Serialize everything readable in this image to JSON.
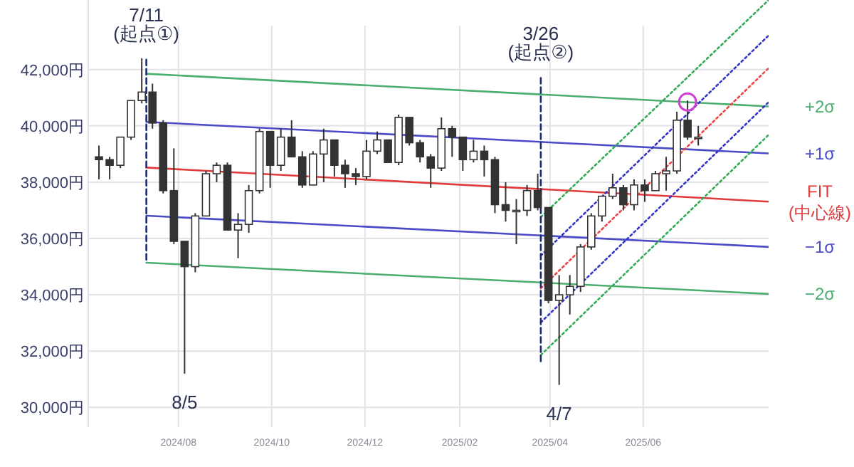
{
  "chart_data": {
    "type": "candlestick",
    "grid": true,
    "xlim": [
      "2024-06-03",
      "2025-08-22"
    ],
    "ylim": [
      29300,
      44470
    ],
    "xticks": [
      {
        "value": "2024-08-01",
        "label": "2024/08"
      },
      {
        "value": "2024-10-01",
        "label": "2024/10"
      },
      {
        "value": "2024-12-01",
        "label": "2024/12"
      },
      {
        "value": "2025-02-01",
        "label": "2025/02"
      },
      {
        "value": "2025-04-01",
        "label": "2025/04"
      },
      {
        "value": "2025-06-01",
        "label": "2025/06"
      }
    ],
    "yticks": [
      {
        "value": 30000,
        "label": "30,000円"
      },
      {
        "value": 32000,
        "label": "32,000円"
      },
      {
        "value": 34000,
        "label": "34,000円"
      },
      {
        "value": 36000,
        "label": "36,000円"
      },
      {
        "value": 38000,
        "label": "38,000円"
      },
      {
        "value": 40000,
        "label": "40,000円"
      },
      {
        "value": 42000,
        "label": "42,000円"
      }
    ],
    "series": [
      {
        "type": "line",
        "name": "+2σ",
        "color": "#4aae6e",
        "x": [
          "2024-07-11",
          "2025-08-22"
        ],
        "values": [
          41850,
          40690
        ]
      },
      {
        "type": "line",
        "name": "+1σ",
        "color": "#4b4bc8",
        "x": [
          "2024-07-11",
          "2025-08-22"
        ],
        "values": [
          40140,
          39020
        ]
      },
      {
        "type": "line",
        "name": "FIT\n(中心線)",
        "color": "#e03a3a",
        "x": [
          "2024-07-11",
          "2025-08-22"
        ],
        "values": [
          38520,
          37310
        ]
      },
      {
        "type": "line",
        "name": "−1σ",
        "color": "#4b4bc8",
        "x": [
          "2024-07-11",
          "2025-08-22"
        ],
        "values": [
          36810,
          35700
        ]
      },
      {
        "type": "line",
        "name": "−2σ",
        "color": "#4aae6e",
        "x": [
          "2024-07-11",
          "2025-08-22"
        ],
        "values": [
          35140,
          34030
        ]
      },
      {
        "type": "line",
        "color": "#33aa55",
        "line_style": "dotted",
        "x": [
          "2025-03-26",
          "2025-08-22"
        ],
        "values": [
          36760,
          44470
        ]
      },
      {
        "type": "line",
        "color": "#3434c8",
        "line_style": "dotted",
        "x": [
          "2025-03-26",
          "2025-08-22"
        ],
        "values": [
          35390,
          43210
        ]
      },
      {
        "type": "line",
        "color": "#ee4444",
        "line_style": "dotted",
        "x": [
          "2025-03-26",
          "2025-08-22"
        ],
        "values": [
          34230,
          42050
        ]
      },
      {
        "type": "line",
        "color": "#3434c8",
        "line_style": "dotted",
        "x": [
          "2025-03-26",
          "2025-08-22"
        ],
        "values": [
          33020,
          40840
        ]
      },
      {
        "type": "line",
        "color": "#33aa55",
        "line_style": "dotted",
        "x": [
          "2025-03-26",
          "2025-08-22"
        ],
        "values": [
          31860,
          39680
        ]
      },
      {
        "type": "line",
        "color": "#1a2a6c",
        "line_style": "dashed",
        "x": [
          "2024-07-11",
          "2024-07-11"
        ],
        "values": [
          42350,
          35240
        ]
      },
      {
        "type": "line",
        "color": "#1a2a6c",
        "line_style": "dashed",
        "x": [
          "2025-03-26",
          "2025-03-26"
        ],
        "values": [
          41700,
          31600
        ]
      },
      {
        "color": "#333333",
        "x": [
          "2024-06-10",
          "2024-06-17",
          "2024-06-24",
          "2024-07-01",
          "2024-07-08",
          "2024-07-15",
          "2024-07-22",
          "2024-07-29",
          "2024-08-05",
          "2024-08-12",
          "2024-08-19",
          "2024-08-26",
          "2024-09-02",
          "2024-09-09",
          "2024-09-16",
          "2024-09-23",
          "2024-09-30",
          "2024-10-07",
          "2024-10-14",
          "2024-10-21",
          "2024-10-28",
          "2024-11-04",
          "2024-11-11",
          "2024-11-18",
          "2024-11-25",
          "2024-12-02",
          "2024-12-09",
          "2024-12-16",
          "2024-12-23",
          "2024-12-30",
          "2025-01-06",
          "2025-01-13",
          "2025-01-20",
          "2025-01-27",
          "2025-02-03",
          "2025-02-10",
          "2025-02-17",
          "2025-02-24",
          "2025-03-03",
          "2025-03-10",
          "2025-03-17",
          "2025-03-24",
          "2025-03-31",
          "2025-04-07",
          "2025-04-14",
          "2025-04-21",
          "2025-04-28",
          "2025-05-05",
          "2025-05-12",
          "2025-05-19",
          "2025-05-26",
          "2025-06-02",
          "2025-06-09",
          "2025-06-16",
          "2025-06-23",
          "2025-06-30",
          "2025-07-07"
        ],
        "ohlc": [
          [
            38900,
            39300,
            38100,
            38800
          ],
          [
            38800,
            38900,
            38100,
            38600
          ],
          [
            38600,
            39600,
            38500,
            39600
          ],
          [
            39600,
            40900,
            39500,
            40900
          ],
          [
            40900,
            42400,
            40800,
            41200
          ],
          [
            41200,
            41500,
            39900,
            40100
          ],
          [
            40100,
            40200,
            37600,
            37700
          ],
          [
            37700,
            39200,
            35800,
            35900
          ],
          [
            35900,
            35900,
            31200,
            35000
          ],
          [
            35000,
            36900,
            34800,
            36800
          ],
          [
            36800,
            38400,
            36800,
            38300
          ],
          [
            38300,
            38700,
            38000,
            38600
          ],
          [
            38600,
            38700,
            36300,
            36300
          ],
          [
            36300,
            36900,
            35300,
            36500
          ],
          [
            36500,
            37900,
            36200,
            37700
          ],
          [
            37700,
            39900,
            37600,
            39800
          ],
          [
            39800,
            39800,
            37800,
            38600
          ],
          [
            38600,
            39900,
            38400,
            39600
          ],
          [
            39600,
            40200,
            38900,
            38900
          ],
          [
            38900,
            39100,
            37800,
            37900
          ],
          [
            37900,
            39100,
            37900,
            39000
          ],
          [
            39000,
            39900,
            38000,
            39500
          ],
          [
            39500,
            39500,
            38200,
            38600
          ],
          [
            38600,
            38800,
            37800,
            38300
          ],
          [
            38300,
            38500,
            37900,
            38200
          ],
          [
            38200,
            39500,
            38100,
            39100
          ],
          [
            39100,
            39800,
            39000,
            39500
          ],
          [
            39500,
            39500,
            38700,
            38700
          ],
          [
            38700,
            40400,
            38600,
            40300
          ],
          [
            40300,
            40300,
            39300,
            39400
          ],
          [
            39400,
            39500,
            38700,
            38900
          ],
          [
            38900,
            39000,
            37800,
            38500
          ],
          [
            38500,
            40300,
            38400,
            39900
          ],
          [
            39900,
            40000,
            38900,
            39600
          ],
          [
            39600,
            39600,
            38400,
            38800
          ],
          [
            38800,
            39500,
            38700,
            39100
          ],
          [
            39100,
            39300,
            38200,
            38800
          ],
          [
            38800,
            38900,
            36900,
            37200
          ],
          [
            37200,
            38000,
            36600,
            37000
          ],
          [
            37000,
            37400,
            35800,
            37000
          ],
          [
            37000,
            37900,
            36800,
            37700
          ],
          [
            37700,
            38300,
            37000,
            37100
          ],
          [
            37100,
            37100,
            33700,
            33800
          ],
          [
            33800,
            34700,
            30800,
            34000
          ],
          [
            34000,
            34700,
            33300,
            34300
          ],
          [
            34300,
            35800,
            34100,
            35700
          ],
          [
            35700,
            36900,
            35600,
            36800
          ],
          [
            36800,
            37500,
            36600,
            37500
          ],
          [
            37500,
            38300,
            37400,
            37800
          ],
          [
            37800,
            37900,
            37000,
            37200
          ],
          [
            37200,
            38100,
            37000,
            37900
          ],
          [
            37900,
            38100,
            37300,
            37700
          ],
          [
            37700,
            38400,
            37700,
            38300
          ],
          [
            38300,
            38900,
            37700,
            38400
          ],
          [
            38400,
            40500,
            38300,
            40200
          ],
          [
            40200,
            40900,
            39500,
            39600
          ],
          [
            39600,
            40000,
            39300,
            39600
          ]
        ]
      },
      {
        "type": "scatter",
        "marker": "circle",
        "color": "#d040d0",
        "x": [
          "2025-06-30"
        ],
        "values": [
          40850
        ]
      }
    ],
    "annotations": [
      {
        "text": "7/11\n(起点①)",
        "x": "2024-07-11",
        "y": 42350
      },
      {
        "text": "8/5",
        "x": "2024-08-05",
        "y": 31200
      },
      {
        "text": "3/26\n(起点②)",
        "x": "2025-03-26",
        "y": 41700
      },
      {
        "text": "4/7",
        "x": "2025-04-07",
        "y": 30800
      }
    ]
  }
}
